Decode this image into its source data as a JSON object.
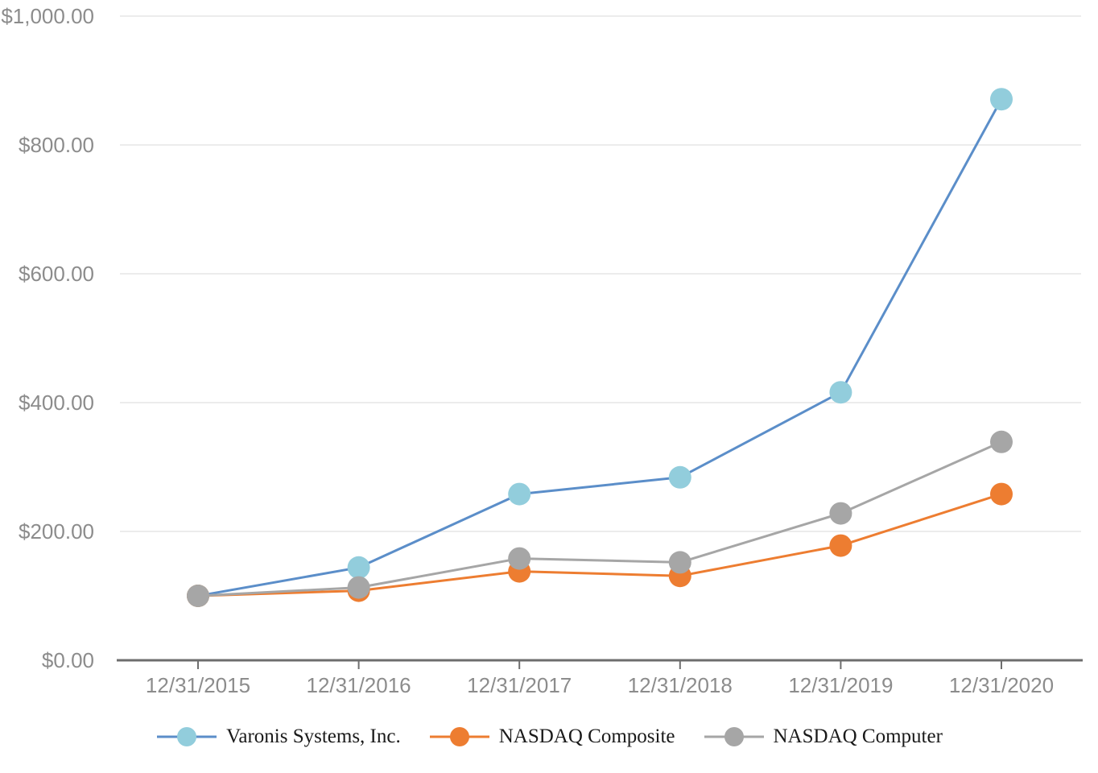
{
  "chart_data": {
    "type": "line",
    "title": "",
    "xlabel": "",
    "ylabel": "",
    "x": [
      "12/31/2015",
      "12/31/2016",
      "12/31/2017",
      "12/31/2018",
      "12/31/2019",
      "12/31/2020"
    ],
    "series": [
      {
        "name": "Varonis Systems, Inc.",
        "values": [
          100,
          144,
          258,
          284,
          416,
          871
        ],
        "line_color": "#5b8ec9",
        "marker_color": "#92cddc"
      },
      {
        "name": "NASDAQ Composite",
        "values": [
          100,
          108,
          138,
          131,
          178,
          258
        ],
        "line_color": "#ed7d31",
        "marker_color": "#ed7d31"
      },
      {
        "name": "NASDAQ Computer",
        "values": [
          100,
          113,
          158,
          152,
          228,
          339
        ],
        "line_color": "#a6a6a6",
        "marker_color": "#a6a6a6"
      }
    ],
    "ylim": [
      0,
      1000
    ],
    "y_ticks": [
      {
        "value": 0,
        "label": "$0.00"
      },
      {
        "value": 200,
        "label": "$200.00"
      },
      {
        "value": 400,
        "label": "$400.00"
      },
      {
        "value": 600,
        "label": "$600.00"
      },
      {
        "value": 800,
        "label": "$800.00"
      },
      {
        "value": 1000,
        "label": "$1,000.00"
      }
    ],
    "grid": true,
    "legend_position": "bottom"
  },
  "colors": {
    "background": "#ffffff",
    "grid_line": "#ececec",
    "axis_line": "#6e6e6e",
    "tick_label": "#8c8c8c"
  }
}
